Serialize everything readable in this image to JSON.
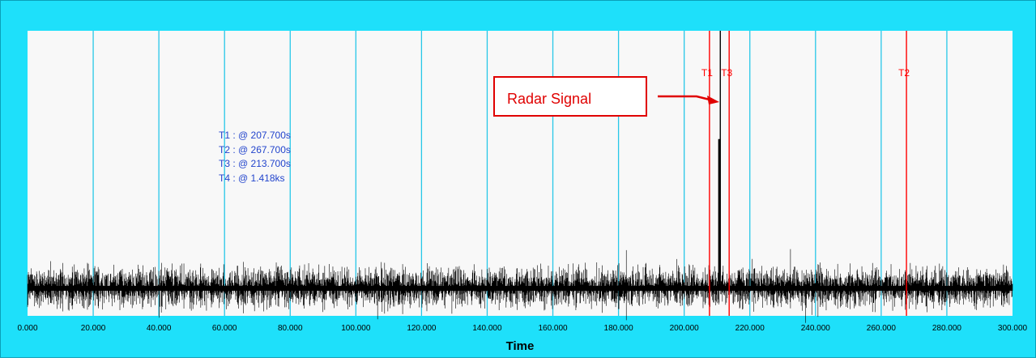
{
  "chart_data": {
    "type": "line",
    "title": "",
    "xlabel": "Time",
    "ylabel": "",
    "xlim": [
      0,
      300
    ],
    "x_ticks": [
      "0.000",
      "20.000",
      "40.000",
      "60.000",
      "80.000",
      "100.000",
      "120.000",
      "140.000",
      "160.000",
      "180.000",
      "200.000",
      "220.000",
      "240.000",
      "260.000",
      "280.000",
      "300.000"
    ],
    "x_tick_values": [
      0,
      20,
      40,
      60,
      80,
      100,
      120,
      140,
      160,
      180,
      200,
      220,
      240,
      260,
      280,
      300
    ],
    "grid": "vertical",
    "series": [
      {
        "noise_baseline": 0.1,
        "noise_amplitude": 0.06,
        "spike": {
          "x": 211,
          "peak": 1.0,
          "shoulder": 0.62
        }
      }
    ],
    "cursors": [
      {
        "name": "T1",
        "x": 207.7,
        "readout": "T1 : @ 207.700s"
      },
      {
        "name": "T2",
        "x": 267.7,
        "readout": "T2 : @ 267.700s"
      },
      {
        "name": "T3",
        "x": 213.7,
        "readout": "T3 : @ 213.700s"
      },
      {
        "name": "T4",
        "readout": "T4 : @ 1.418ks"
      }
    ],
    "annotation": {
      "text": "Radar Signal",
      "target_x": 211
    }
  },
  "colors": {
    "frame": "#1ee0fa",
    "plot_bg": "#f8f8f8",
    "grid": "#27c7e8",
    "cursor": "#ff0000",
    "signal": "#000000",
    "readout": "#2244cc",
    "annotation_border": "#e00000",
    "annotation_text": "#e00000"
  }
}
